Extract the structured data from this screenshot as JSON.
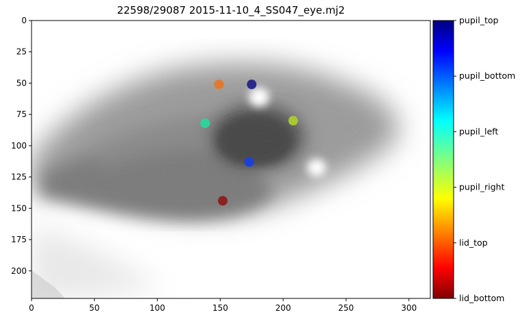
{
  "title": "22598/29087 2015-11-10_4_SS047_eye.mj2",
  "chart_data": {
    "type": "scatter",
    "xlim": [
      0,
      317
    ],
    "ylim": [
      222,
      0
    ],
    "x_ticks": [
      "0",
      "50",
      "100",
      "150",
      "200",
      "250",
      "300"
    ],
    "y_ticks": [
      "0",
      "25",
      "50",
      "75",
      "100",
      "125",
      "150",
      "175",
      "200"
    ],
    "points": [
      {
        "label": "pupil_top",
        "x": 175,
        "y": 51,
        "color": "#2b2a8c"
      },
      {
        "label": "pupil_bottom",
        "x": 173,
        "y": 113,
        "color": "#1e40d8"
      },
      {
        "label": "pupil_left",
        "x": 138,
        "y": 82,
        "color": "#2fd39a"
      },
      {
        "label": "pupil_right",
        "x": 208,
        "y": 80,
        "color": "#a8c832"
      },
      {
        "label": "lid_top",
        "x": 149,
        "y": 51,
        "color": "#e07a30"
      },
      {
        "label": "lid_bottom",
        "x": 152,
        "y": 144,
        "color": "#8b2222"
      }
    ],
    "colorbar_labels": [
      "pupil_top",
      "pupil_bottom",
      "pupil_left",
      "pupil_right",
      "lid_top",
      "lid_bottom"
    ],
    "colormap": "jet"
  }
}
